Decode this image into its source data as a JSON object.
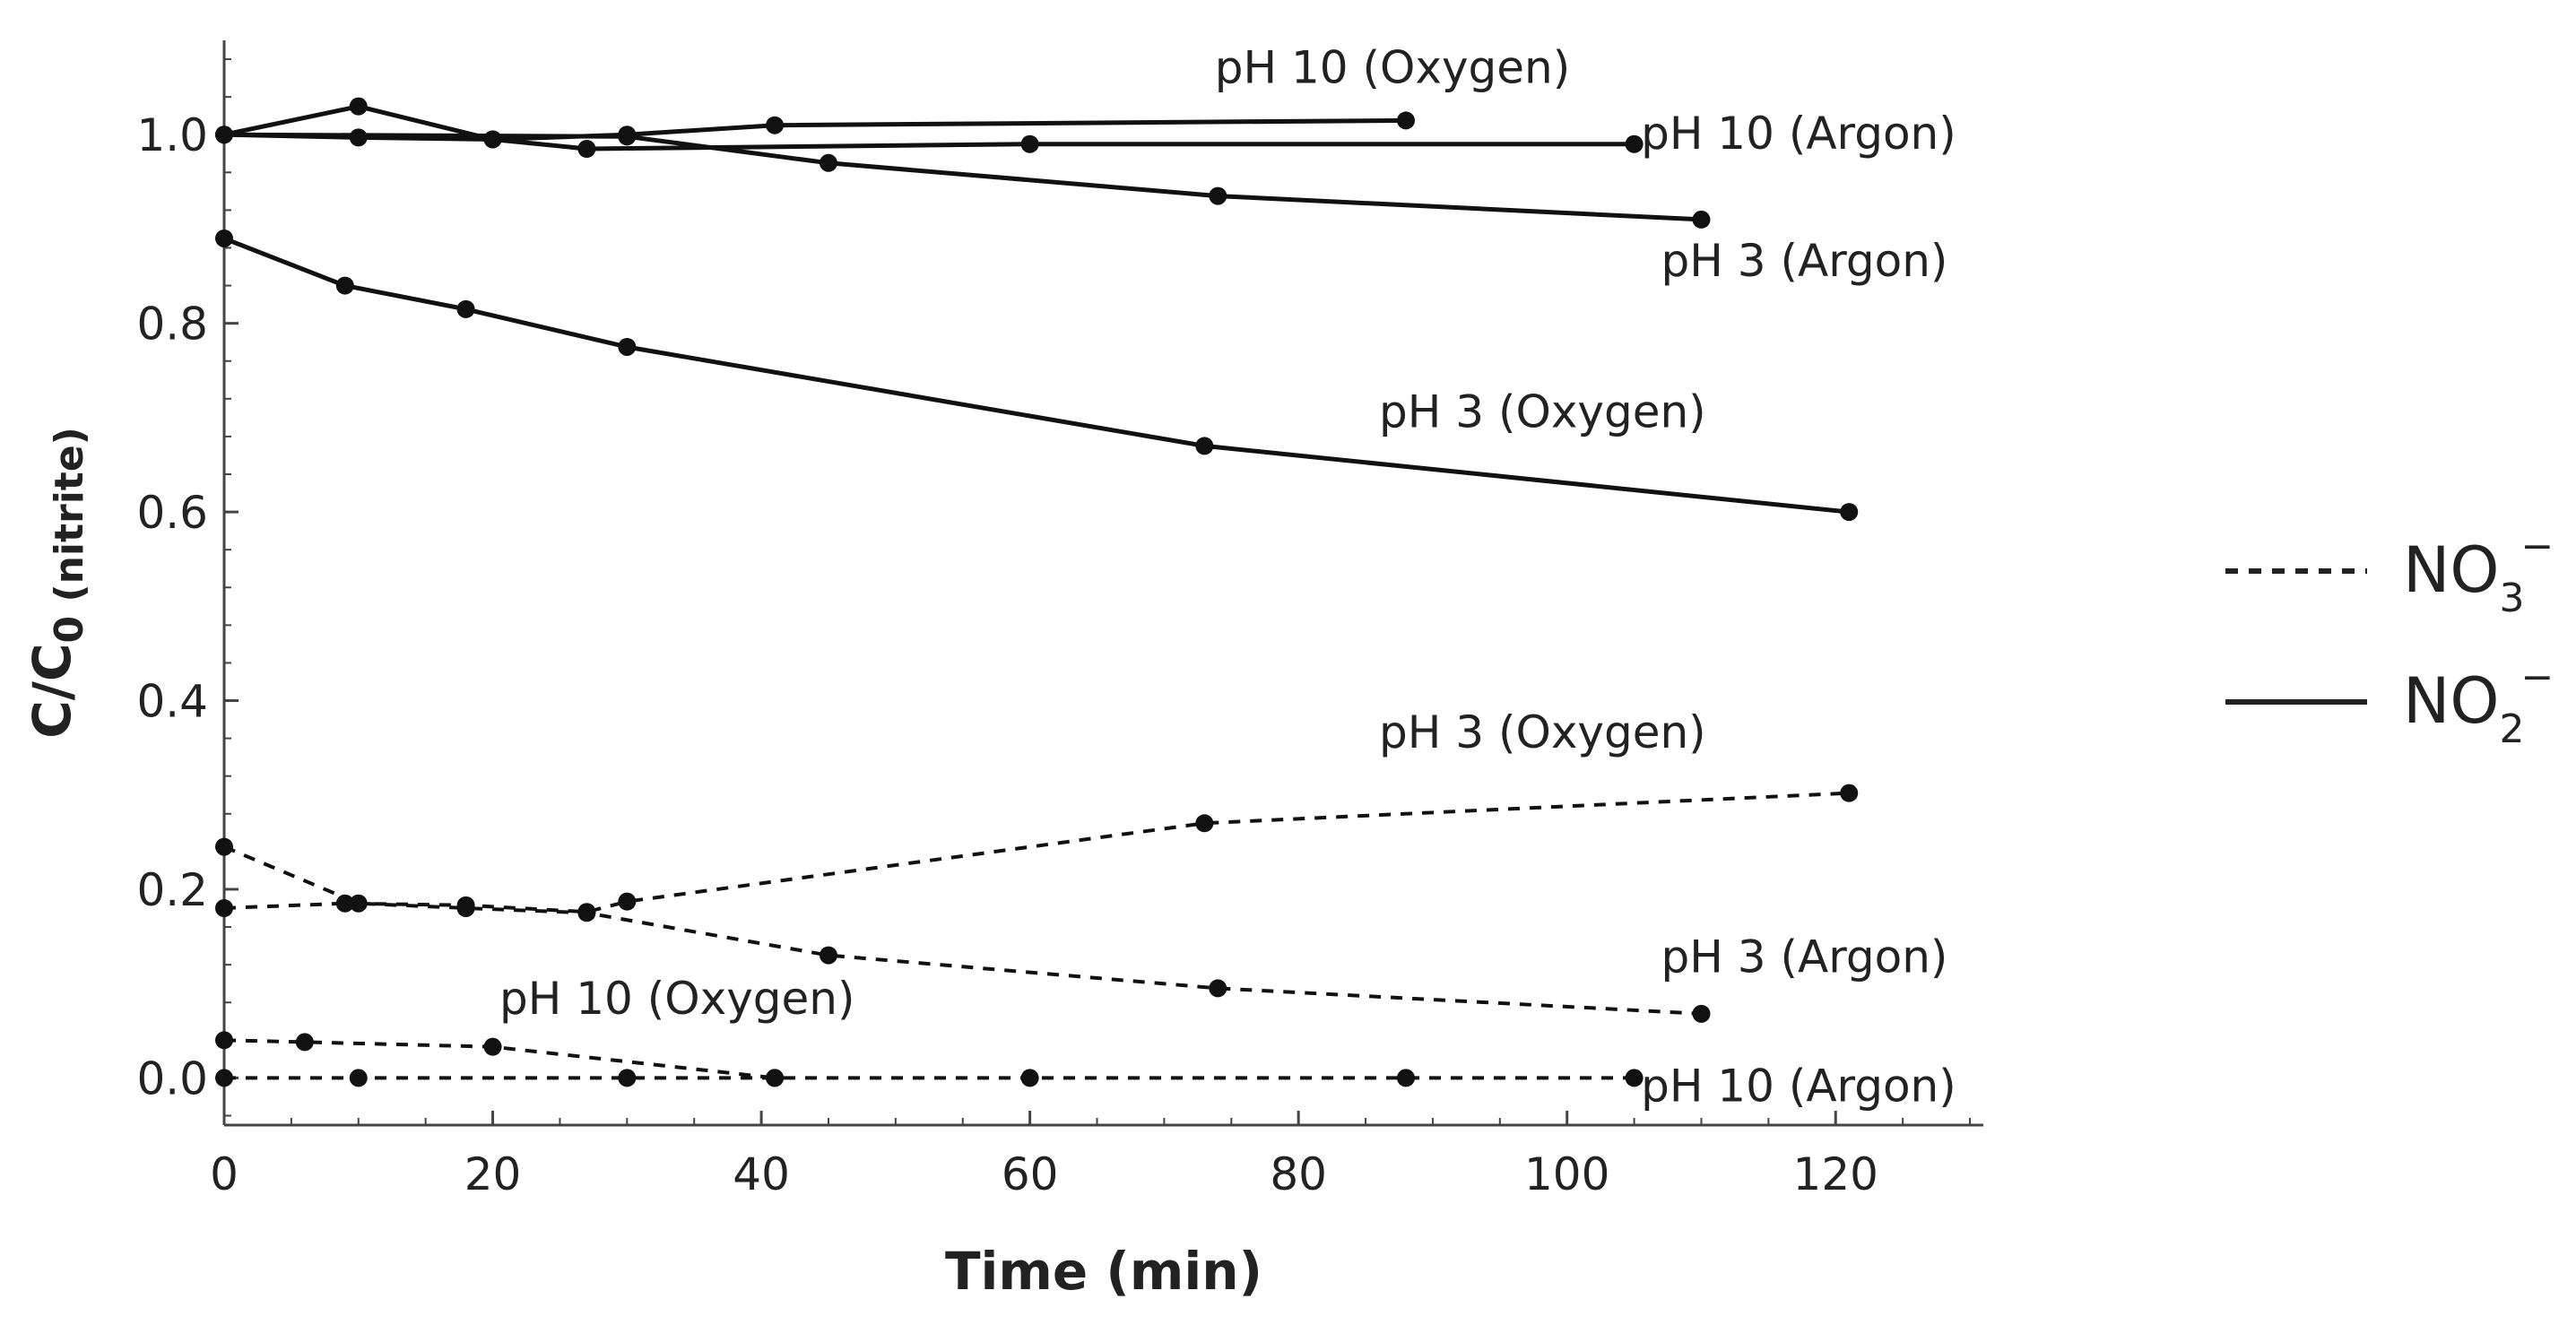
{
  "chart_data": {
    "type": "line",
    "title": "",
    "xlabel": "Time (min)",
    "ylabel": {
      "main": "C/C",
      "subscript": "0 (nitrite)"
    },
    "xlim": [
      0,
      131
    ],
    "ylim": [
      -0.05,
      1.1
    ],
    "xticks": [
      0,
      20,
      40,
      60,
      80,
      100,
      120
    ],
    "yticks": [
      0.0,
      0.2,
      0.4,
      0.6,
      0.8,
      1.0
    ],
    "ytick_labels": [
      "0.0",
      "0.2",
      "0.4",
      "0.6",
      "0.8",
      "1.0"
    ],
    "legend": {
      "position": "right",
      "entries": [
        {
          "label": "NO",
          "subscript": "3",
          "superscript": "−",
          "style": "dashed"
        },
        {
          "label": "NO",
          "subscript": "2",
          "superscript": "−",
          "style": "solid"
        }
      ]
    },
    "series": [
      {
        "name": "pH 10 (Oxygen)",
        "ion": "nitrite",
        "style": "solid",
        "x": [
          0,
          10,
          20,
          30,
          41,
          88
        ],
        "y": [
          1.0,
          1.03,
          0.995,
          1.0,
          1.01,
          1.015
        ]
      },
      {
        "name": "pH 10 (Argon)",
        "ion": "nitrite",
        "style": "solid",
        "x": [
          0,
          10,
          20,
          27,
          60,
          105
        ],
        "y": [
          1.0,
          0.997,
          0.995,
          0.985,
          0.99,
          0.99
        ]
      },
      {
        "name": "pH 3 (Argon)",
        "ion": "nitrite",
        "style": "solid",
        "x": [
          0,
          30,
          45,
          74,
          110
        ],
        "y": [
          1.0,
          0.998,
          0.97,
          0.935,
          0.91
        ]
      },
      {
        "name": "pH 3 (Oxygen)",
        "ion": "nitrite",
        "style": "solid",
        "x": [
          0,
          9,
          18,
          30,
          73,
          121
        ],
        "y": [
          0.89,
          0.84,
          0.815,
          0.775,
          0.67,
          0.6
        ]
      },
      {
        "name": "pH 3 (Oxygen)",
        "ion": "nitrate",
        "style": "dashed",
        "x": [
          0,
          9,
          18,
          27,
          30,
          73,
          121
        ],
        "y": [
          0.18,
          0.185,
          0.183,
          0.176,
          0.187,
          0.27,
          0.302
        ]
      },
      {
        "name": "pH 3 (Argon)",
        "ion": "nitrate",
        "style": "dashed",
        "x": [
          0,
          10,
          18,
          27,
          45,
          74,
          110
        ],
        "y": [
          0.245,
          0.185,
          0.18,
          0.175,
          0.13,
          0.095,
          0.068
        ]
      },
      {
        "name": "pH 10 (Oxygen)",
        "ion": "nitrate",
        "style": "dashed",
        "x": [
          0,
          6,
          20,
          41
        ],
        "y": [
          0.04,
          0.038,
          0.033,
          0.0
        ]
      },
      {
        "name": "pH 10 (Argon)",
        "ion": "nitrate",
        "style": "dashed",
        "x": [
          0,
          10,
          30,
          41,
          60,
          88,
          105
        ],
        "y": [
          0.0,
          0.0,
          0.0,
          0.0,
          0.0,
          0.0,
          0.0
        ]
      }
    ],
    "annotations": [
      {
        "text": "pH 10 (Oxygen)",
        "x": 87,
        "y": 1.055,
        "anchor": "middle"
      },
      {
        "text": "pH 10 (Argon)",
        "x": 105.5,
        "y": 0.985,
        "anchor": "start"
      },
      {
        "text": "pH 3 (Argon)",
        "x": 107,
        "y": 0.85,
        "anchor": "start"
      },
      {
        "text": "pH 3 (Oxygen)",
        "x": 86,
        "y": 0.69,
        "anchor": "start"
      },
      {
        "text": "pH 3 (Oxygen)",
        "x": 86,
        "y": 0.35,
        "anchor": "start"
      },
      {
        "text": "pH 3 (Argon)",
        "x": 107,
        "y": 0.112,
        "anchor": "start"
      },
      {
        "text": "pH 10 (Oxygen)",
        "x": 20.5,
        "y": 0.068,
        "anchor": "start"
      },
      {
        "text": "pH 10 (Argon)",
        "x": 105.5,
        "y": -0.025,
        "anchor": "start"
      }
    ]
  }
}
